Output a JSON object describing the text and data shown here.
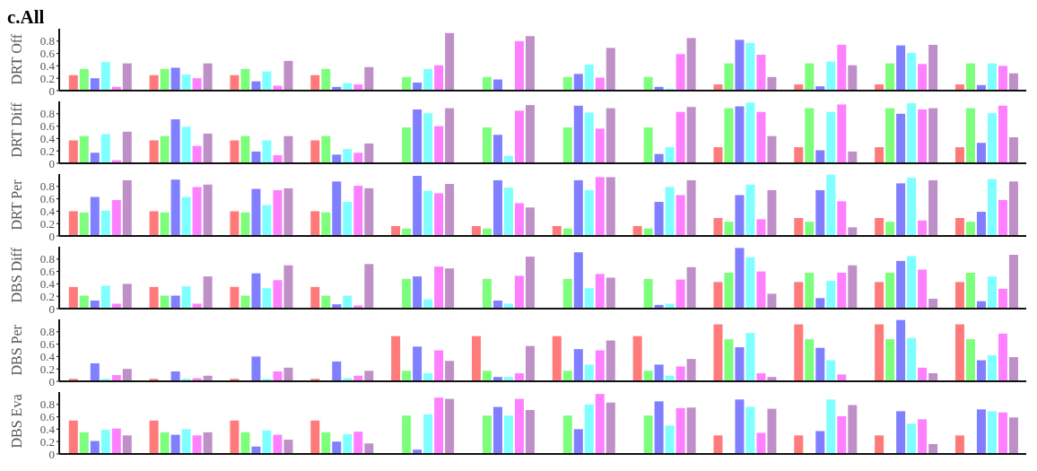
{
  "chart_data": [
    {
      "type": "bar",
      "title": "c.All",
      "ylabel": "DRT Off",
      "categories": [
        null,
        null,
        null,
        null,
        null,
        null,
        null,
        null,
        null,
        null,
        null,
        null
      ],
      "ylim": [
        0,
        1
      ],
      "yticks": [
        0,
        0.2,
        0.4,
        0.6,
        0.8
      ],
      "series": [
        {
          "color": "#ff7b7b",
          "values": [
            0.25,
            0.25,
            0.25,
            0.25,
            null,
            null,
            null,
            null,
            0.1,
            0.1,
            0.1,
            0.1
          ]
        },
        {
          "color": "#7dff7d",
          "values": [
            0.35,
            0.35,
            0.35,
            0.35,
            0.22,
            0.22,
            0.22,
            0.22,
            0.44,
            0.44,
            0.44,
            0.44
          ]
        },
        {
          "color": "#7f7fff",
          "values": [
            0.2,
            0.37,
            0.15,
            0.06,
            0.13,
            0.18,
            0.27,
            0.06,
            0.82,
            0.07,
            0.73,
            0.09
          ]
        },
        {
          "color": "#7fffff",
          "values": [
            0.46,
            0.26,
            0.31,
            0.12,
            0.35,
            null,
            0.42,
            0.03,
            0.77,
            0.47,
            0.61,
            0.44
          ]
        },
        {
          "color": "#ff80ff",
          "values": [
            0.06,
            0.2,
            0.08,
            0.1,
            0.41,
            0.8,
            0.21,
            0.59,
            0.58,
            0.74,
            0.43,
            0.4
          ]
        },
        {
          "color": "#bf90c8",
          "values": [
            0.44,
            0.44,
            0.48,
            0.38,
            0.93,
            0.88,
            0.69,
            0.85,
            0.22,
            0.41,
            0.74,
            0.28
          ]
        }
      ]
    },
    {
      "type": "bar",
      "ylabel": "DRT Diff",
      "categories": [
        null,
        null,
        null,
        null,
        null,
        null,
        null,
        null,
        null,
        null,
        null,
        null
      ],
      "ylim": [
        0,
        1
      ],
      "yticks": [
        0,
        0.2,
        0.4,
        0.6,
        0.8
      ],
      "series": [
        {
          "color": "#ff7b7b",
          "values": [
            0.37,
            0.37,
            0.37,
            0.37,
            null,
            null,
            null,
            null,
            0.26,
            0.26,
            0.26,
            0.26
          ]
        },
        {
          "color": "#7dff7d",
          "values": [
            0.44,
            0.44,
            0.44,
            0.44,
            0.58,
            0.58,
            0.58,
            0.58,
            0.89,
            0.89,
            0.89,
            0.89
          ]
        },
        {
          "color": "#7f7fff",
          "values": [
            0.17,
            0.71,
            0.19,
            0.14,
            0.87,
            0.46,
            0.93,
            0.15,
            0.92,
            0.21,
            0.8,
            0.33
          ]
        },
        {
          "color": "#7fffff",
          "values": [
            0.47,
            0.59,
            0.37,
            0.23,
            0.81,
            0.12,
            0.82,
            0.26,
            0.98,
            0.83,
            0.97,
            0.81
          ]
        },
        {
          "color": "#ff80ff",
          "values": [
            0.05,
            0.28,
            0.13,
            0.17,
            0.6,
            0.85,
            0.56,
            0.83,
            0.83,
            0.95,
            0.87,
            0.93
          ]
        },
        {
          "color": "#bf90c8",
          "values": [
            0.51,
            0.48,
            0.44,
            0.32,
            0.89,
            0.94,
            0.89,
            0.91,
            0.44,
            0.19,
            0.89,
            0.42
          ]
        }
      ]
    },
    {
      "type": "bar",
      "ylabel": "DRT Per",
      "categories": [
        null,
        null,
        null,
        null,
        null,
        null,
        null,
        null,
        null,
        null,
        null,
        null
      ],
      "ylim": [
        0,
        1
      ],
      "yticks": [
        0,
        0.2,
        0.4,
        0.6,
        0.8
      ],
      "series": [
        {
          "color": "#ff7b7b",
          "values": [
            0.4,
            0.4,
            0.4,
            0.4,
            0.16,
            0.16,
            0.16,
            0.16,
            0.29,
            0.29,
            0.29,
            0.29
          ]
        },
        {
          "color": "#7dff7d",
          "values": [
            0.38,
            0.38,
            0.38,
            0.38,
            0.12,
            0.12,
            0.12,
            0.12,
            0.23,
            0.23,
            0.23,
            0.23
          ]
        },
        {
          "color": "#7f7fff",
          "values": [
            0.63,
            0.91,
            0.76,
            0.88,
            0.97,
            0.9,
            0.9,
            0.55,
            0.66,
            0.74,
            0.85,
            0.39
          ]
        },
        {
          "color": "#7fffff",
          "values": [
            0.41,
            0.63,
            0.5,
            0.55,
            0.73,
            0.78,
            0.74,
            0.79,
            0.83,
            0.99,
            0.94,
            0.92
          ]
        },
        {
          "color": "#ff80ff",
          "values": [
            0.58,
            0.79,
            0.74,
            0.81,
            0.69,
            0.53,
            0.95,
            0.66,
            0.27,
            0.56,
            0.25,
            0.58
          ]
        },
        {
          "color": "#bf90c8",
          "values": [
            0.9,
            0.83,
            0.77,
            0.77,
            0.84,
            0.46,
            0.95,
            0.9,
            0.74,
            0.14,
            0.9,
            0.88
          ]
        }
      ]
    },
    {
      "type": "bar",
      "ylabel": "DBS Diff",
      "categories": [
        null,
        null,
        null,
        null,
        null,
        null,
        null,
        null,
        null,
        null,
        null,
        null
      ],
      "ylim": [
        0,
        1
      ],
      "yticks": [
        0,
        0.2,
        0.4,
        0.6,
        0.8
      ],
      "series": [
        {
          "color": "#ff7b7b",
          "values": [
            0.35,
            0.35,
            0.35,
            0.35,
            null,
            null,
            null,
            null,
            0.43,
            0.43,
            0.43,
            0.43
          ]
        },
        {
          "color": "#7dff7d",
          "values": [
            0.21,
            0.21,
            0.21,
            0.21,
            0.48,
            0.48,
            0.48,
            0.48,
            0.58,
            0.58,
            0.58,
            0.58
          ]
        },
        {
          "color": "#7f7fff",
          "values": [
            0.13,
            0.21,
            0.57,
            0.07,
            0.52,
            0.13,
            0.91,
            0.06,
            0.98,
            0.17,
            0.77,
            0.12
          ]
        },
        {
          "color": "#7fffff",
          "values": [
            0.37,
            0.36,
            0.33,
            0.21,
            0.15,
            0.08,
            0.33,
            0.08,
            0.83,
            0.45,
            0.85,
            0.52
          ]
        },
        {
          "color": "#ff80ff",
          "values": [
            0.08,
            0.08,
            0.46,
            0.05,
            0.68,
            0.53,
            0.56,
            0.47,
            0.6,
            0.58,
            0.63,
            0.32
          ]
        },
        {
          "color": "#bf90c8",
          "values": [
            0.4,
            0.52,
            0.7,
            0.72,
            0.65,
            0.84,
            0.5,
            0.67,
            0.24,
            0.7,
            0.16,
            0.87
          ]
        }
      ]
    },
    {
      "type": "bar",
      "ylabel": "DBS Per",
      "categories": [
        null,
        null,
        null,
        null,
        null,
        null,
        null,
        null,
        null,
        null,
        null,
        null
      ],
      "ylim": [
        0,
        1
      ],
      "yticks": [
        0,
        0.2,
        0.4,
        0.6,
        0.8
      ],
      "series": [
        {
          "color": "#ff7b7b",
          "values": [
            0.04,
            0.04,
            0.04,
            0.04,
            0.73,
            0.73,
            0.73,
            0.73,
            0.92,
            0.92,
            0.92,
            0.92
          ]
        },
        {
          "color": "#7dff7d",
          "values": [
            null,
            null,
            null,
            null,
            0.17,
            0.17,
            0.17,
            0.17,
            0.68,
            0.68,
            0.68,
            0.68
          ]
        },
        {
          "color": "#7f7fff",
          "values": [
            0.29,
            0.16,
            0.4,
            0.32,
            0.56,
            0.07,
            0.52,
            0.27,
            0.55,
            0.54,
            0.99,
            0.34
          ]
        },
        {
          "color": "#7fffff",
          "values": [
            0.04,
            0.04,
            0.04,
            0.05,
            0.13,
            0.07,
            0.27,
            0.09,
            0.78,
            0.34,
            0.7,
            0.42
          ]
        },
        {
          "color": "#ff80ff",
          "values": [
            0.1,
            0.05,
            0.16,
            0.09,
            0.5,
            0.13,
            0.5,
            0.24,
            0.13,
            0.11,
            0.22,
            0.77
          ]
        },
        {
          "color": "#bf90c8",
          "values": [
            0.2,
            0.09,
            0.22,
            0.17,
            0.33,
            0.57,
            0.66,
            0.36,
            0.07,
            null,
            0.13,
            0.39
          ]
        }
      ]
    },
    {
      "type": "bar",
      "ylabel": "DBS Eva",
      "categories": [
        null,
        null,
        null,
        null,
        null,
        null,
        null,
        null,
        null,
        null,
        null,
        null
      ],
      "ylim": [
        0,
        1
      ],
      "yticks": [
        0,
        0.2,
        0.4,
        0.6,
        0.8
      ],
      "series": [
        {
          "color": "#ff7b7b",
          "values": [
            0.54,
            0.54,
            0.54,
            0.54,
            null,
            null,
            null,
            null,
            0.3,
            0.3,
            0.3,
            0.3
          ]
        },
        {
          "color": "#7dff7d",
          "values": [
            0.35,
            0.35,
            0.35,
            0.35,
            0.62,
            0.62,
            0.62,
            0.62,
            null,
            null,
            null,
            null
          ]
        },
        {
          "color": "#7f7fff",
          "values": [
            0.21,
            0.31,
            0.12,
            0.2,
            0.07,
            0.76,
            0.4,
            0.85,
            0.88,
            0.37,
            0.69,
            0.72
          ]
        },
        {
          "color": "#7fffff",
          "values": [
            0.39,
            0.4,
            0.38,
            0.32,
            0.64,
            0.62,
            0.8,
            0.46,
            0.76,
            0.88,
            0.49,
            0.69
          ]
        },
        {
          "color": "#ff80ff",
          "values": [
            0.41,
            0.3,
            0.31,
            0.36,
            0.91,
            0.89,
            0.97,
            0.74,
            0.34,
            0.61,
            0.56,
            0.67
          ]
        },
        {
          "color": "#bf90c8",
          "values": [
            0.3,
            0.35,
            0.23,
            0.17,
            0.89,
            0.71,
            0.83,
            0.75,
            0.73,
            0.79,
            0.16,
            0.59
          ]
        }
      ]
    }
  ]
}
